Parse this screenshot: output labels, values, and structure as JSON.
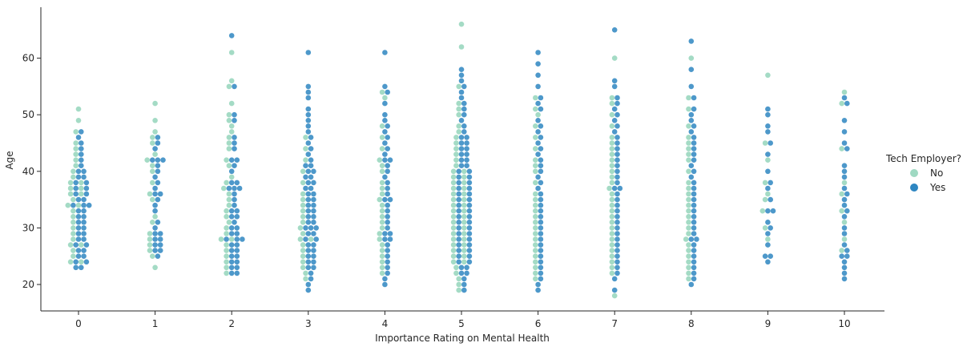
{
  "colors": {
    "no": "#9fd9c2",
    "yes": "#2e86c1"
  },
  "chart_data": {
    "type": "scatter",
    "subtype": "swarm",
    "xlabel": "Importance Rating on Mental Health",
    "ylabel": "Age",
    "categories": [
      "0",
      "1",
      "2",
      "3",
      "4",
      "5",
      "6",
      "7",
      "8",
      "9",
      "10"
    ],
    "yticks": [
      20,
      30,
      40,
      50,
      60
    ],
    "ylim": [
      15,
      67
    ],
    "legend": {
      "title": "Tech Employer?",
      "placement": "center-right",
      "entries": [
        "No",
        "Yes"
      ]
    },
    "grid": false,
    "series": [
      {
        "name": "No",
        "values": [
          [
            51,
            49,
            47,
            45,
            44,
            43,
            42,
            41,
            40,
            39,
            38,
            38,
            37,
            37,
            36,
            36,
            35,
            34,
            34,
            33,
            32,
            31,
            30,
            29,
            28,
            27,
            27,
            26,
            25,
            24,
            24
          ],
          [
            52,
            49,
            47,
            46,
            45,
            43,
            42,
            41,
            40,
            38,
            36,
            35,
            32,
            31,
            29,
            28,
            27,
            26,
            25,
            23
          ],
          [
            61,
            56,
            55,
            52,
            50,
            49,
            48,
            47,
            46,
            45,
            44,
            42,
            41,
            39,
            38,
            37,
            36,
            35,
            34,
            33,
            32,
            31,
            30,
            29,
            28,
            28,
            27,
            26,
            25,
            24,
            23,
            22
          ],
          [
            46,
            44,
            42,
            40,
            38,
            36,
            35,
            34,
            33,
            32,
            31,
            30,
            29,
            28,
            28,
            27,
            26,
            25,
            24,
            23,
            22,
            21
          ],
          [
            54,
            53,
            48,
            46,
            44,
            42,
            41,
            40,
            38,
            37,
            36,
            35,
            34,
            33,
            32,
            31,
            30,
            29,
            28,
            27,
            26,
            25,
            24,
            23,
            22
          ],
          [
            66,
            62,
            55,
            52,
            51,
            50,
            48,
            47,
            46,
            45,
            44,
            43,
            42,
            41,
            40,
            40,
            39,
            39,
            38,
            38,
            37,
            37,
            36,
            36,
            35,
            35,
            34,
            34,
            33,
            33,
            32,
            32,
            31,
            31,
            30,
            30,
            29,
            29,
            28,
            28,
            27,
            27,
            26,
            26,
            25,
            25,
            24,
            24,
            23,
            22,
            21,
            20,
            19
          ],
          [
            53,
            51,
            50,
            48,
            46,
            44,
            42,
            41,
            40,
            38,
            36,
            35,
            34,
            33,
            32,
            31,
            30,
            29,
            28,
            27,
            26,
            25,
            24,
            23,
            22,
            21
          ],
          [
            60,
            53,
            52,
            50,
            48,
            46,
            45,
            44,
            43,
            42,
            41,
            40,
            39,
            38,
            37,
            36,
            35,
            34,
            33,
            32,
            31,
            30,
            29,
            28,
            27,
            26,
            25,
            24,
            23,
            22,
            18
          ],
          [
            60,
            53,
            51,
            48,
            46,
            45,
            44,
            43,
            42,
            40,
            38,
            37,
            36,
            35,
            34,
            33,
            32,
            31,
            30,
            29,
            28,
            27,
            26,
            25,
            24,
            23,
            22,
            21
          ],
          [
            57,
            45,
            42,
            38,
            36,
            35,
            33,
            30,
            28
          ],
          [
            54,
            52,
            44,
            38,
            36,
            33,
            31,
            28,
            26
          ]
        ]
      },
      {
        "name": "Yes",
        "values": [
          [
            47,
            46,
            45,
            44,
            43,
            42,
            41,
            40,
            40,
            39,
            39,
            38,
            38,
            37,
            37,
            36,
            36,
            35,
            35,
            34,
            34,
            34,
            33,
            33,
            32,
            32,
            31,
            31,
            30,
            30,
            29,
            29,
            28,
            28,
            27,
            27,
            26,
            26,
            25,
            25,
            24,
            24,
            23,
            23
          ],
          [
            46,
            45,
            44,
            42,
            42,
            42,
            41,
            40,
            39,
            38,
            37,
            36,
            36,
            35,
            34,
            33,
            31,
            30,
            29,
            29,
            28,
            28,
            27,
            27,
            26,
            26,
            25
          ],
          [
            64,
            55,
            50,
            49,
            46,
            45,
            44,
            42,
            42,
            41,
            40,
            38,
            38,
            37,
            37,
            37,
            36,
            35,
            34,
            33,
            33,
            32,
            32,
            31,
            30,
            30,
            29,
            29,
            28,
            28,
            28,
            27,
            27,
            26,
            26,
            25,
            25,
            24,
            24,
            23,
            23,
            22,
            22
          ],
          [
            61,
            55,
            54,
            53,
            51,
            50,
            49,
            48,
            47,
            46,
            45,
            44,
            43,
            42,
            41,
            41,
            40,
            40,
            39,
            39,
            38,
            38,
            37,
            37,
            36,
            36,
            35,
            35,
            34,
            34,
            33,
            33,
            32,
            32,
            31,
            31,
            30,
            30,
            30,
            29,
            29,
            28,
            28,
            27,
            27,
            26,
            26,
            25,
            25,
            24,
            24,
            23,
            23,
            22,
            21,
            20,
            19
          ],
          [
            61,
            55,
            54,
            52,
            50,
            49,
            48,
            47,
            46,
            45,
            44,
            43,
            42,
            42,
            41,
            40,
            39,
            38,
            37,
            36,
            35,
            35,
            34,
            33,
            32,
            31,
            30,
            29,
            29,
            28,
            28,
            27,
            26,
            25,
            24,
            23,
            22,
            21,
            20
          ],
          [
            58,
            57,
            56,
            55,
            54,
            53,
            52,
            51,
            50,
            49,
            48,
            47,
            46,
            46,
            45,
            45,
            44,
            44,
            43,
            43,
            42,
            42,
            41,
            41,
            40,
            40,
            39,
            39,
            38,
            38,
            37,
            37,
            36,
            36,
            35,
            35,
            34,
            34,
            33,
            33,
            32,
            32,
            31,
            31,
            30,
            30,
            29,
            29,
            28,
            28,
            27,
            27,
            26,
            26,
            25,
            25,
            24,
            24,
            23,
            23,
            22,
            22,
            21,
            20,
            19
          ],
          [
            61,
            59,
            57,
            55,
            53,
            52,
            51,
            49,
            48,
            47,
            46,
            45,
            44,
            43,
            42,
            41,
            40,
            39,
            38,
            37,
            36,
            35,
            34,
            33,
            32,
            31,
            30,
            29,
            28,
            27,
            26,
            25,
            24,
            23,
            22,
            21,
            20,
            19
          ],
          [
            65,
            56,
            55,
            53,
            52,
            51,
            50,
            49,
            48,
            47,
            46,
            45,
            44,
            43,
            42,
            41,
            40,
            39,
            38,
            37,
            37,
            36,
            35,
            34,
            33,
            32,
            31,
            30,
            29,
            28,
            27,
            26,
            25,
            24,
            23,
            22,
            21,
            19
          ],
          [
            63,
            58,
            55,
            53,
            51,
            50,
            49,
            48,
            47,
            46,
            45,
            44,
            43,
            42,
            41,
            40,
            39,
            38,
            37,
            36,
            35,
            34,
            33,
            32,
            31,
            30,
            29,
            28,
            28,
            27,
            26,
            25,
            24,
            23,
            22,
            21,
            20
          ],
          [
            51,
            50,
            48,
            47,
            45,
            43,
            40,
            38,
            37,
            35,
            33,
            33,
            31,
            30,
            29,
            27,
            25,
            25,
            24
          ],
          [
            53,
            52,
            49,
            47,
            45,
            44,
            41,
            40,
            39,
            37,
            36,
            35,
            34,
            33,
            32,
            30,
            29,
            27,
            26,
            25,
            25,
            24,
            23,
            22,
            21
          ]
        ]
      }
    ]
  }
}
